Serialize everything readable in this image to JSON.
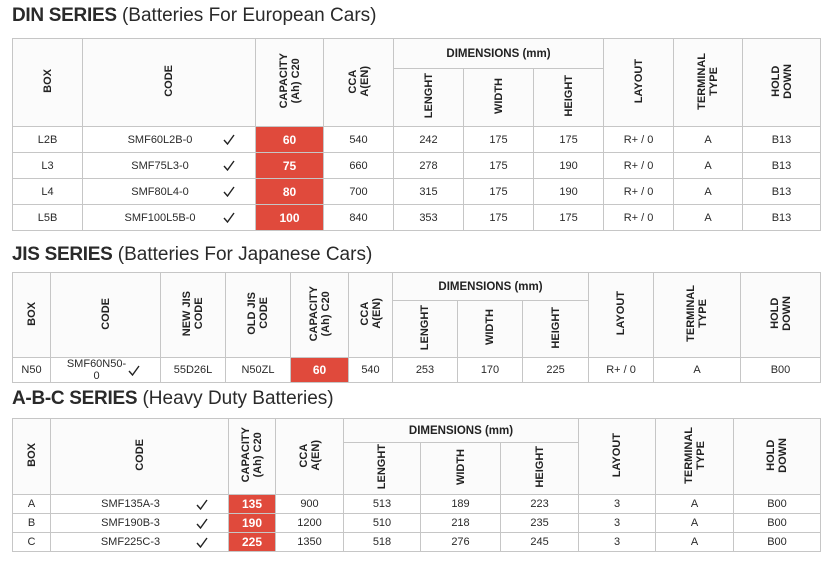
{
  "highlight_color": "#e04a3c",
  "sections": [
    {
      "title": {
        "bold": "DIN SERIES",
        "rest": "(Batteries For European Cars)"
      },
      "headers": {
        "box": [
          "BOX"
        ],
        "code": [
          "CODE"
        ],
        "capacity": [
          "CAPACITY",
          "(Ah) C20"
        ],
        "cca": [
          "CCA",
          "A(EN)"
        ],
        "dimensions": {
          "title": "DIMENSIONS (mm)",
          "length": [
            "LENGHT"
          ],
          "width": [
            "WIDTH"
          ],
          "height": [
            "HEIGHT"
          ]
        },
        "layout": [
          "LAYOUT"
        ],
        "terminal": [
          "TERMINAL",
          "TYPE"
        ],
        "hold": [
          "HOLD",
          "DOWN"
        ]
      },
      "rows": [
        {
          "box": "L2B",
          "code": "SMF60L2B-0",
          "capacity": 60,
          "cca": 540,
          "length": 242,
          "width": 175,
          "height": 175,
          "layout": "R+ / 0",
          "terminal": "A",
          "hold": "B13"
        },
        {
          "box": "L3",
          "code": "SMF75L3-0",
          "capacity": 75,
          "cca": 660,
          "length": 278,
          "width": 175,
          "height": 190,
          "layout": "R+ / 0",
          "terminal": "A",
          "hold": "B13"
        },
        {
          "box": "L4",
          "code": "SMF80L4-0",
          "capacity": 80,
          "cca": 700,
          "length": 315,
          "width": 175,
          "height": 190,
          "layout": "R+ / 0",
          "terminal": "A",
          "hold": "B13"
        },
        {
          "box": "L5B",
          "code": "SMF100L5B-0",
          "capacity": 100,
          "cca": 840,
          "length": 353,
          "width": 175,
          "height": 175,
          "layout": "R+ / 0",
          "terminal": "A",
          "hold": "B13"
        }
      ]
    },
    {
      "title": {
        "bold": "JIS SERIES",
        "rest": "(Batteries For Japanese Cars)"
      },
      "headers": {
        "box": [
          "BOX"
        ],
        "code": [
          "CODE"
        ],
        "new_jis": [
          "NEW JIS",
          "CODE"
        ],
        "old_jis": [
          "OLD JIS",
          "CODE"
        ],
        "capacity": [
          "CAPACITY",
          "(Ah) C20"
        ],
        "cca": [
          "CCA",
          "A(EN)"
        ],
        "dimensions": {
          "title": "DIMENSIONS (mm)",
          "length": [
            "LENGHT"
          ],
          "width": [
            "WIDTH"
          ],
          "height": [
            "HEIGHT"
          ]
        },
        "layout": [
          "LAYOUT"
        ],
        "terminal": [
          "TERMINAL",
          "TYPE"
        ],
        "hold": [
          "HOLD",
          "DOWN"
        ]
      },
      "rows": [
        {
          "box": "N50",
          "code": "SMF60N50-0",
          "new_jis": "55D26L",
          "old_jis": "N50ZL",
          "capacity": 60,
          "cca": 540,
          "length": 253,
          "width": 170,
          "height": 225,
          "layout": "R+ / 0",
          "terminal": "A",
          "hold": "B00"
        }
      ]
    },
    {
      "title": {
        "bold": "A-B-C SERIES",
        "rest": "(Heavy Duty Batteries)"
      },
      "headers": {
        "box": [
          "BOX"
        ],
        "code": [
          "CODE"
        ],
        "capacity": [
          "CAPACITY",
          "(Ah) C20"
        ],
        "cca": [
          "CCA",
          "A(EN)"
        ],
        "dimensions": {
          "title": "DIMENSIONS (mm)",
          "length": [
            "LENGHT"
          ],
          "width": [
            "WIDTH"
          ],
          "height": [
            "HEIGHT"
          ]
        },
        "layout": [
          "LAYOUT"
        ],
        "terminal": [
          "TERMINAL",
          "TYPE"
        ],
        "hold": [
          "HOLD",
          "DOWN"
        ]
      },
      "rows": [
        {
          "box": "A",
          "code": "SMF135A-3",
          "capacity": 135,
          "cca": 900,
          "length": 513,
          "width": 189,
          "height": 223,
          "layout": 3,
          "terminal": "A",
          "hold": "B00"
        },
        {
          "box": "B",
          "code": "SMF190B-3",
          "capacity": 190,
          "cca": 1200,
          "length": 510,
          "width": 218,
          "height": 235,
          "layout": 3,
          "terminal": "A",
          "hold": "B00"
        },
        {
          "box": "C",
          "code": "SMF225C-3",
          "capacity": 225,
          "cca": 1350,
          "length": 518,
          "width": 276,
          "height": 245,
          "layout": 3,
          "terminal": "A",
          "hold": "B00"
        }
      ]
    }
  ]
}
